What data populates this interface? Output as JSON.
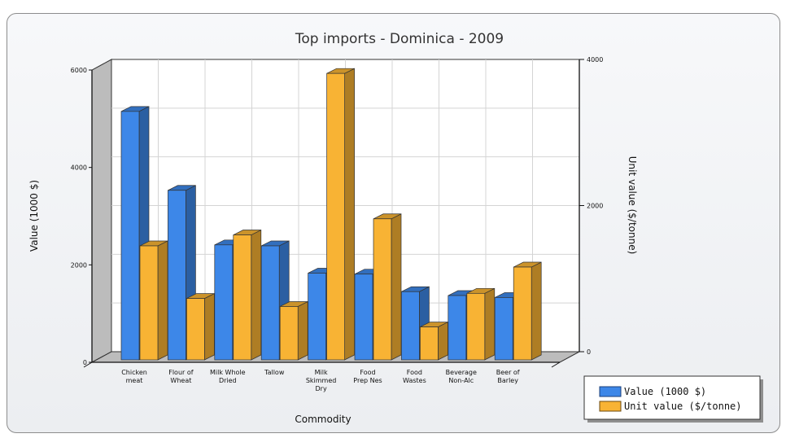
{
  "chart_data": {
    "type": "bar",
    "title": "Top imports - Dominica - 2009",
    "xlabel": "Commodity",
    "ylabel": "Value (1000 $)",
    "y2label": "Unit value ($/tonne)",
    "ylim": [
      0,
      6000
    ],
    "y2lim": [
      0,
      4000
    ],
    "yticks": [
      0,
      2000,
      4000,
      6000
    ],
    "y2ticks": [
      0,
      2000,
      4000
    ],
    "categories": [
      [
        "Chicken",
        "meat"
      ],
      [
        "Flour of",
        "Wheat"
      ],
      [
        "Milk Whole",
        "Dried"
      ],
      [
        "Tallow"
      ],
      [
        "Milk",
        "Skimmed",
        "Dry"
      ],
      [
        "Food",
        "Prep Nes"
      ],
      [
        "Food",
        "Wastes"
      ],
      [
        "Beverage",
        "Non-Alc"
      ],
      [
        "Beer of",
        "Barley"
      ]
    ],
    "series": [
      {
        "name": "Value (1000 $)",
        "axis": "left",
        "color": "#3d87e8",
        "values": [
          5100,
          3480,
          2360,
          2340,
          1780,
          1760,
          1400,
          1320,
          1280
        ]
      },
      {
        "name": "Unit value ($/tonne)",
        "axis": "right",
        "color": "#f8b334",
        "values": [
          1560,
          840,
          1710,
          730,
          3920,
          1930,
          450,
          910,
          1270
        ]
      }
    ],
    "grid": true,
    "legend": "bottom-right"
  }
}
